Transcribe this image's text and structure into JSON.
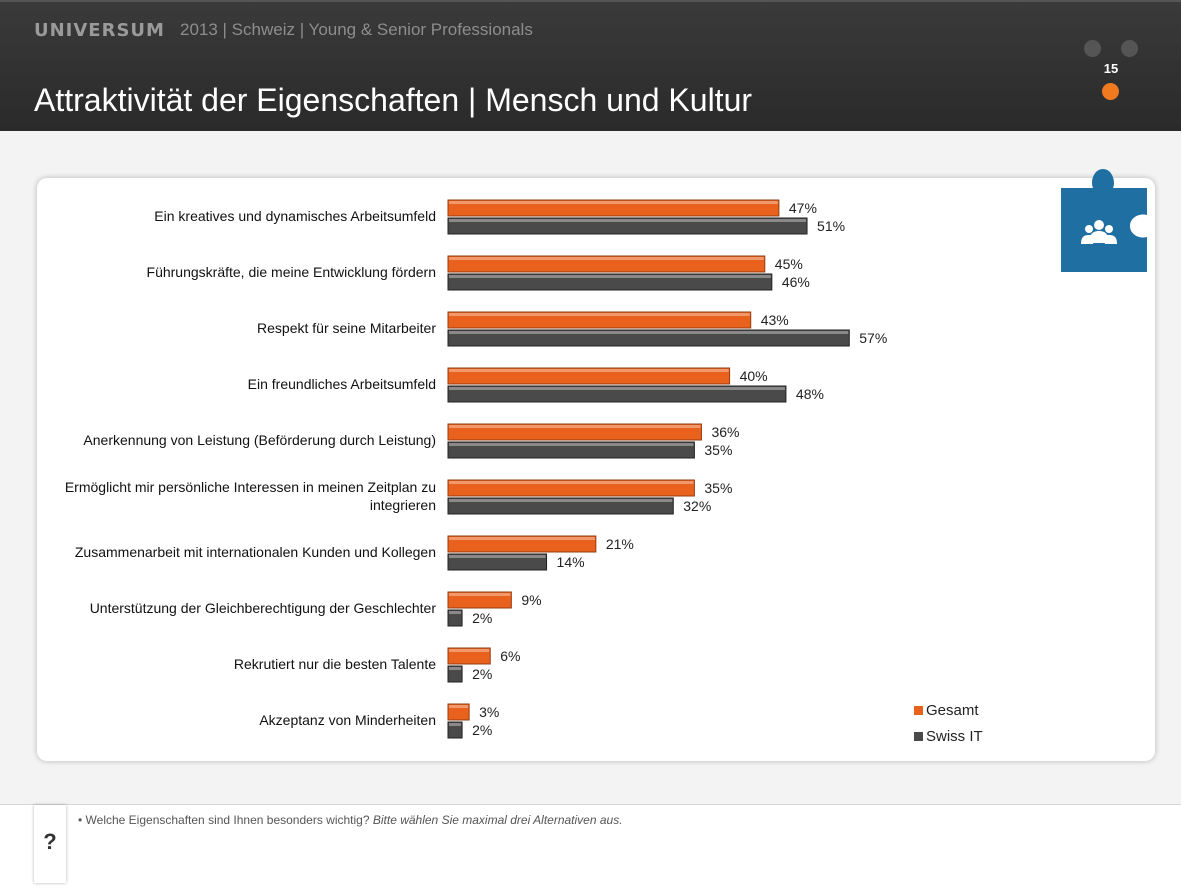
{
  "header": {
    "brand": "UNIVERSUM",
    "subtitle": "2013 | Schweiz | Young & Senior Professionals",
    "title": "Attraktivität der Eigenschaften | Mensch und Kultur",
    "page_number": "15"
  },
  "colors": {
    "gesamt": "#e8621e",
    "swiss_it": "#4a4a4a",
    "puzzle": "#1f6fa3",
    "accent_dot": "#f07a1f"
  },
  "chart_data": {
    "type": "bar",
    "orientation": "horizontal",
    "categories": [
      [
        "Ein kreatives und dynamisches Arbeitsumfeld"
      ],
      [
        "Führungskräfte, die meine Entwicklung fördern"
      ],
      [
        "Respekt für seine Mitarbeiter"
      ],
      [
        "Ein freundliches Arbeitsumfeld"
      ],
      [
        "Anerkennung von Leistung (Beförderung durch Leistung)"
      ],
      [
        "Ermöglicht mir persönliche Interessen in meinen Zeitplan zu",
        "integrieren"
      ],
      [
        "Zusammenarbeit mit internationalen Kunden und Kollegen"
      ],
      [
        "Unterstützung der Gleichberechtigung der Geschlechter"
      ],
      [
        "Rekrutiert nur die besten Talente"
      ],
      [
        "Akzeptanz von Minderheiten"
      ]
    ],
    "series": [
      {
        "name": "Gesamt",
        "values": [
          47,
          45,
          43,
          40,
          36,
          35,
          21,
          9,
          6,
          3
        ]
      },
      {
        "name": "Swiss IT",
        "values": [
          51,
          46,
          57,
          48,
          35,
          32,
          14,
          2,
          2,
          2
        ]
      }
    ],
    "value_suffix": "%",
    "legend_position": "bottom-right"
  },
  "legend": {
    "gesamt": "Gesamt",
    "swiss_it": "Swiss IT"
  },
  "footnote": {
    "bullet": "•",
    "question": "Welche Eigenschaften sind Ihnen besonders wichtig?",
    "instruction": "Bitte wählen Sie maximal drei Alternativen aus."
  },
  "help": {
    "symbol": "?"
  },
  "icons": {
    "puzzle": "puzzle-people-icon"
  }
}
